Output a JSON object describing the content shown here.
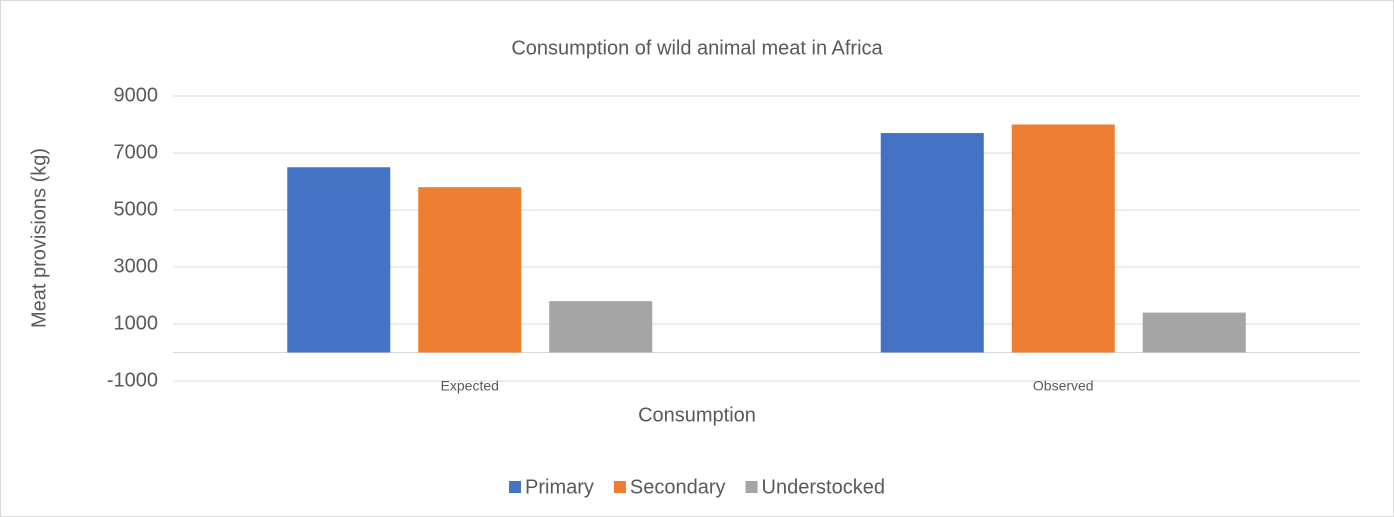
{
  "chart_data": {
    "type": "bar",
    "title": "Consumption of wild animal meat in Africa",
    "x_label": "Consumption",
    "y_label": "Meat provisions (kg)",
    "categories": [
      "Expected",
      "Observed"
    ],
    "series": [
      {
        "name": "Primary",
        "color": "#4472c4",
        "values": [
          6500,
          7700
        ]
      },
      {
        "name": "Secondary",
        "color": "#ed7d31",
        "values": [
          5800,
          8000
        ]
      },
      {
        "name": "Understocked",
        "color": "#a5a5a5",
        "values": [
          1800,
          1400
        ]
      }
    ],
    "ylim": [
      -1000,
      9000
    ],
    "yticks": [
      -1000,
      1000,
      3000,
      5000,
      7000,
      9000
    ],
    "grid": true,
    "legend": "bottom"
  }
}
